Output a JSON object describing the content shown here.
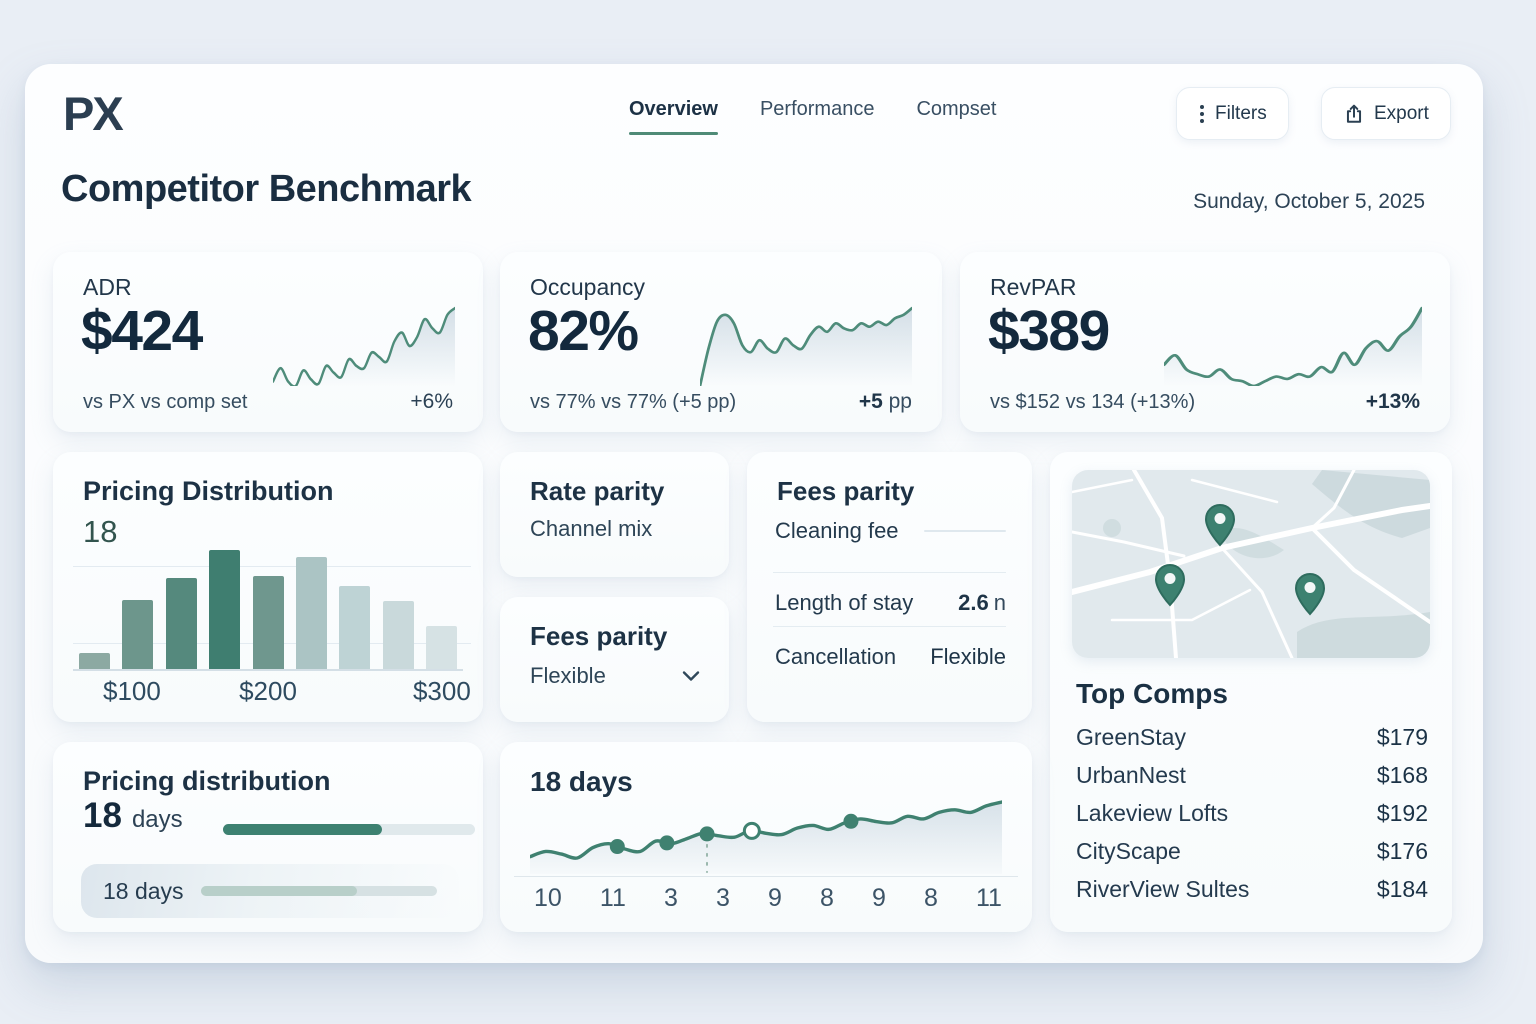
{
  "header": {
    "logo": "PX",
    "nav": [
      {
        "label": "Overview",
        "active": true
      },
      {
        "label": "Performance",
        "active": false
      },
      {
        "label": "Compset",
        "active": false
      }
    ],
    "filters_button": "Filters",
    "export_button": "Export"
  },
  "page": {
    "title": "Competitor Benchmark",
    "date": "Sunday, October 5, 2025"
  },
  "kpis": [
    {
      "label": "ADR",
      "value": "$424",
      "comparison": "vs PX vs comp set",
      "delta_value": "+6%",
      "delta_unit": ""
    },
    {
      "label": "Occupancy",
      "value": "82%",
      "comparison": "vs 77% vs 77% (+5 pp)",
      "delta_value": "+5",
      "delta_unit": " pp"
    },
    {
      "label": "RevPAR",
      "value": "$389",
      "comparison": "vs $152 vs 134  (+13%)",
      "delta_value": "+13%",
      "delta_unit": ""
    }
  ],
  "pricing_distribution": {
    "title": "Pricing Distribution",
    "subtitle": "18"
  },
  "rate_parity": {
    "title": "Rate parity",
    "subtitle": "Channel mix"
  },
  "fees_parity_small": {
    "title": "Fees parity",
    "value": "Flexible"
  },
  "fees_parity_detail": {
    "title": "Fees parity",
    "rows": [
      {
        "label": "Cleaning fee",
        "value": ""
      },
      {
        "label": "Length of stay",
        "value_strong": "2.6",
        "value_unit": "n"
      },
      {
        "label": "Cancellation",
        "value": "Flexible"
      }
    ]
  },
  "top_comps": {
    "title": "Top Comps",
    "items": [
      {
        "name": "GreenStay",
        "price": "$179"
      },
      {
        "name": "UrbanNest",
        "price": "$168"
      },
      {
        "name": "Lakeview Lofts",
        "price": "$192"
      },
      {
        "name": "CityScape",
        "price": "$176"
      },
      {
        "name": "RiverView Sultes",
        "price": "$184"
      }
    ]
  },
  "pricing_bottom": {
    "title": "Pricing distribution",
    "value_strong": "18",
    "value_unit": "days",
    "sub_label": "18 days"
  },
  "days_chart": {
    "title": "18 days"
  },
  "colors": {
    "accent_green": "#4E8C7A",
    "bar_dark": "#3F7E70",
    "text_dark": "#1B2F42",
    "progress_green": "#3D8171",
    "track": "#E0E9EC"
  },
  "chart_data": {
    "adr_sparkline": {
      "type": "area",
      "values": [
        30,
        36,
        30,
        28,
        35,
        31,
        29,
        37,
        34,
        32,
        40,
        37,
        36,
        43,
        41,
        39,
        48,
        52,
        46,
        50,
        58,
        54,
        52,
        60,
        63
      ],
      "trend_label": "+6%"
    },
    "occupancy_sparkline": {
      "type": "area",
      "values": [
        20,
        42,
        58,
        62,
        57,
        44,
        40,
        47,
        42,
        40,
        48,
        44,
        42,
        50,
        55,
        52,
        57,
        54,
        53,
        57,
        55,
        58,
        56,
        60,
        62,
        66
      ],
      "trend_label": "+5 pp"
    },
    "revpar_sparkline": {
      "type": "area",
      "values": [
        40,
        44,
        38,
        36,
        35,
        38,
        34,
        33,
        31,
        33,
        35,
        34,
        36,
        35,
        39,
        37,
        45,
        40,
        47,
        50,
        46,
        52,
        56,
        64
      ],
      "trend_label": "+13%"
    },
    "pricing_histogram": {
      "type": "bar",
      "title": "Pricing Distribution",
      "subtitle": "18",
      "values": [
        17,
        68,
        90,
        117,
        92,
        110,
        82,
        67,
        43
      ],
      "colors": [
        "#8CA9A2",
        "#6D968C",
        "#55897D",
        "#3F7E70",
        "#6F978E",
        "#ABC4C4",
        "#BED3D5",
        "#C9D9DB",
        "#D6E2E4"
      ],
      "x_ticks": [
        "$100",
        "$200",
        "$300"
      ],
      "x_tick_positions": [
        0.14,
        0.5,
        0.96
      ]
    },
    "days_line": {
      "type": "area",
      "title": "18 days",
      "values": [
        26,
        30,
        28,
        25,
        33,
        36,
        32,
        30,
        38,
        36,
        40,
        44,
        42,
        41,
        46,
        44,
        43,
        48,
        50,
        47,
        52,
        55,
        53,
        52,
        57,
        55,
        60,
        62,
        60,
        65,
        68
      ],
      "x_ticks": [
        "10",
        "11",
        "3",
        "3",
        "9",
        "8",
        "9",
        "8",
        "11"
      ],
      "markers": [
        {
          "x": 0.185,
          "style": "filled"
        },
        {
          "x": 0.29,
          "style": "filled"
        },
        {
          "x": 0.375,
          "style": "filled",
          "drop_line": true
        },
        {
          "x": 0.47,
          "style": "open"
        },
        {
          "x": 0.68,
          "style": "filled"
        }
      ]
    },
    "pricing_progress": {
      "type": "bar",
      "main": {
        "label": "18 days",
        "fraction": 0.63
      },
      "sub": {
        "label": "18 days",
        "fraction": 0.66
      }
    }
  }
}
